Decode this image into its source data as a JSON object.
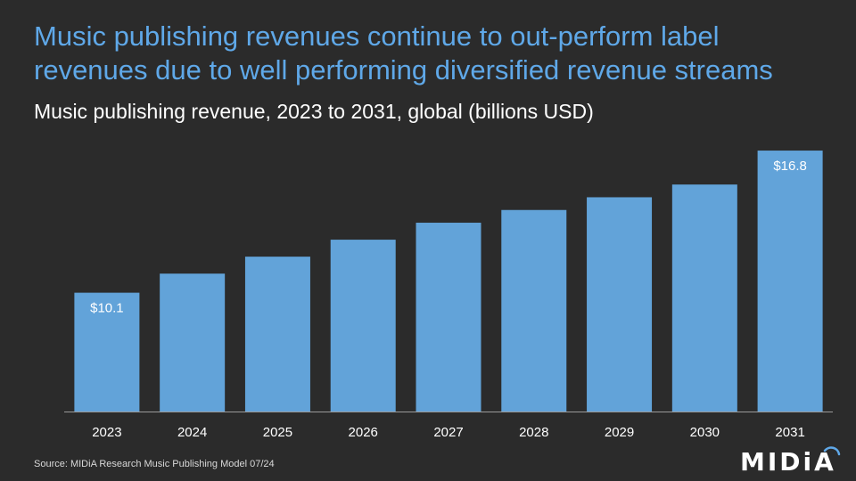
{
  "headline": "Music publishing revenues continue to out-perform label revenues due to well performing diversified revenue streams",
  "source": "Source: MIDiA Research Music Publishing Model 07/24",
  "logo": {
    "text": "MIDiA"
  },
  "colors": {
    "background": "#2b2b2b",
    "headline": "#5fa8e8",
    "bar": "#62a3d9",
    "axis": "#9a9a9a"
  },
  "chart_data": {
    "type": "bar",
    "title": "Music publishing revenue, 2023 to 2031, global (billions USD)",
    "categories": [
      "2023",
      "2024",
      "2025",
      "2026",
      "2027",
      "2028",
      "2029",
      "2030",
      "2031"
    ],
    "values": [
      10.1,
      11.0,
      11.8,
      12.6,
      13.4,
      14.0,
      14.6,
      15.2,
      16.8
    ],
    "data_labels": [
      {
        "index": 0,
        "text": "$10.1"
      },
      {
        "index": 8,
        "text": "$16.8"
      }
    ],
    "xlabel": "",
    "ylabel": "",
    "ylim": [
      4.5,
      17.6
    ],
    "grid": false,
    "legend": "none"
  }
}
